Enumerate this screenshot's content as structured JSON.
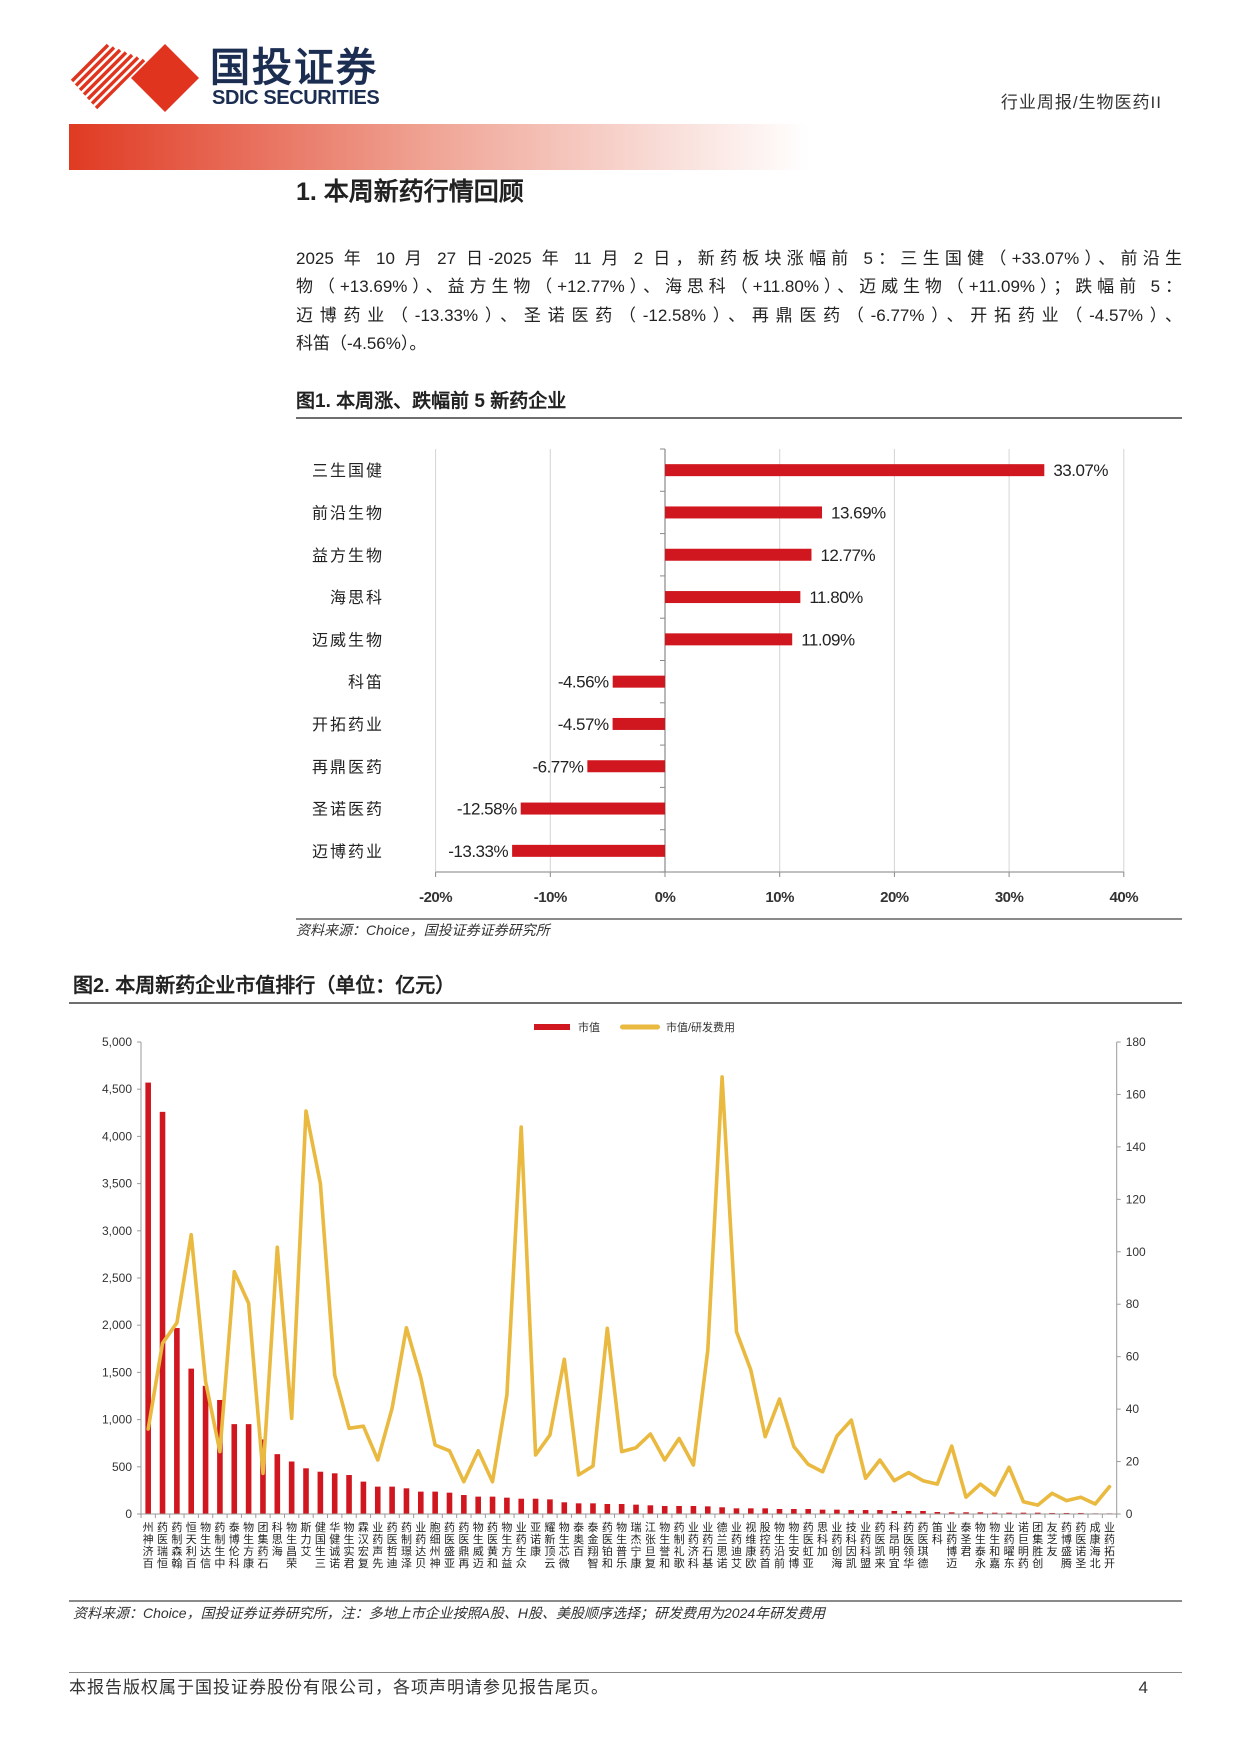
{
  "header": {
    "logo_cn": "国投证券",
    "logo_en": "SDIC SECURITIES",
    "report_type": "行业周报/生物医药II"
  },
  "section": {
    "title": "1. 本周新药行情回顾",
    "paragraph_lines": [
      "2025 年 10 月 27 日-2025 年 11 月 2 日，新药板块涨幅前 5：三生国健（+33.07%）、前沿生",
      "物（+13.69%）、益方生物（+12.77%）、海思科（+11.80%）、迈威生物（+11.09%）；跌幅前 5：",
      "迈博药业（-13.33%）、圣诺医药（-12.58%）、再鼎医药（-6.77%）、开拓药业（-4.57%）、",
      "科笛（-4.56%）。"
    ]
  },
  "figure1": {
    "title": "图1. 本周涨、跌幅前 5 新药企业",
    "source": "资料来源：Choice，国投证券证券研究所"
  },
  "figure2": {
    "title": "图2. 本周新药企业市值排行（单位：亿元）",
    "source": "资料来源：Choice，国投证券证券研究所，注：多地上市企业按照A股、H股、美股顺序选择；研发费用为2024年研发费用"
  },
  "footer": {
    "copyright": "本报告版权属于国投证券股份有限公司，各项声明请参见报告尾页。",
    "page_number": "4"
  },
  "colors": {
    "brand_red": "#e0341e",
    "brand_navy": "#1c2d52",
    "bar_red": "#d0171f",
    "line_yellow": "#e9b940"
  },
  "chart_data": [
    {
      "type": "bar",
      "orientation": "horizontal",
      "title": "图1. 本周涨、跌幅前 5 新药企业",
      "xlabel": "",
      "ylabel": "",
      "categories": [
        "三生国健",
        "前沿生物",
        "益方生物",
        "海思科",
        "迈威生物",
        "科笛",
        "开拓药业",
        "再鼎医药",
        "圣诺医药",
        "迈博药业"
      ],
      "values": [
        33.07,
        13.69,
        12.77,
        11.8,
        11.09,
        -4.56,
        -4.57,
        -6.77,
        -12.58,
        -13.33
      ],
      "value_labels": [
        "33.07%",
        "13.69%",
        "12.77%",
        "11.80%",
        "11.09%",
        "-4.56%",
        "-4.57%",
        "-6.77%",
        "-12.58%",
        "-13.33%"
      ],
      "xlim": [
        -20,
        40
      ],
      "xticks": [
        -20,
        -10,
        0,
        10,
        20,
        30,
        40
      ],
      "xtick_labels": [
        "-20%",
        "-10%",
        "0%",
        "10%",
        "20%",
        "30%",
        "40%"
      ],
      "grid": true,
      "legend": "none",
      "color": "#d0171f"
    },
    {
      "type": "bar+line",
      "title": "图2. 本周新药企业市值排行（单位：亿元）",
      "xlabel": "",
      "ylabel_left": "",
      "ylabel_right": "",
      "legend_position": "top",
      "categories": [
        "百济神州",
        "恒瑞医药",
        "翰森制药",
        "百利天恒",
        "信达生物",
        "中生制药",
        "科伦博泰",
        "康方生物",
        "石药集团",
        "海思科",
        "荣昌生物",
        "艾力斯",
        "三生国健",
        "诺诚健华",
        "君实生物",
        "复宏汉霖",
        "先声药业",
        "迪哲医药",
        "泽璟制药",
        "贝达药业",
        "神州细胞",
        "亚盛医药",
        "再鼎医药",
        "迈威生物",
        "和黄医药",
        "益方生物",
        "众生药业",
        "康诺亚",
        "云顶新耀",
        "微芯生物",
        "百奥泰",
        "智翔金泰",
        "和铂医药",
        "乐普生物",
        "康宁杰瑞",
        "复旦张江",
        "和誉生物",
        "歌礼制药",
        "科济药业",
        "基石药业",
        "诺思兰德",
        "艾迪药业",
        "欧康维视",
        "首药控股",
        "前沿生物",
        "博安生物",
        "亚虹医药",
        "加科思",
        "海创药业",
        "凯因科技",
        "盟科药业",
        "来凯医药",
        "宜明昂科",
        "华领医药",
        "德琪医药",
        "科笛",
        "迈博药业",
        "君圣泰",
        "永泰生物",
        "嘉和生物",
        "东曜药业",
        "药明巨诺",
        "创胜集团",
        "友芝友",
        "腾盛博药",
        "圣诺医药",
        "北海康成",
        "开拓药业"
      ],
      "series": [
        {
          "name": "市值",
          "type": "bar",
          "axis": "left",
          "color": "#d0171f",
          "values": [
            4570,
            4260,
            1970,
            1540,
            1358,
            1208,
            952,
            952,
            790,
            634,
            556,
            484,
            448,
            431,
            413,
            343,
            290,
            290,
            272,
            237,
            237,
            226,
            201,
            184,
            184,
            173,
            162,
            162,
            155,
            124,
            113,
            113,
            106,
            106,
            99,
            92,
            85,
            85,
            85,
            81,
            71,
            60,
            60,
            60,
            53,
            53,
            53,
            46,
            46,
            42,
            42,
            42,
            32,
            32,
            32,
            21,
            18,
            18,
            18,
            14,
            14,
            14,
            14,
            11,
            11,
            11,
            7,
            7
          ]
        },
        {
          "name": "市值/研发费用",
          "type": "line",
          "axis": "right",
          "color": "#e9b940",
          "values": [
            32.4,
            65.1,
            72.9,
            106.5,
            50.5,
            23.8,
            92.4,
            80.4,
            15.5,
            101.7,
            36.5,
            153.7,
            126.0,
            53.0,
            32.7,
            33.5,
            20.6,
            40.3,
            71.0,
            52.0,
            26.3,
            24.1,
            12.3,
            24.1,
            12.3,
            45.4,
            147.6,
            22.5,
            30.1,
            59.0,
            14.9,
            18.3,
            70.8,
            23.8,
            25.3,
            30.5,
            20.6,
            28.8,
            18.7,
            62.5,
            166.7,
            69.5,
            54.9,
            29.5,
            43.8,
            25.7,
            18.9,
            16.1,
            29.7,
            35.8,
            13.6,
            20.6,
            12.7,
            15.8,
            12.7,
            11.4,
            25.9,
            6.4,
            11.4,
            7.2,
            17.8,
            4.7,
            3.4,
            7.9,
            5.1,
            6.4,
            3.8,
            10.4
          ]
        }
      ],
      "ylim_left": [
        0,
        5000
      ],
      "yticks_left": [
        0,
        500,
        1000,
        1500,
        2000,
        2500,
        3000,
        3500,
        4000,
        4500,
        5000
      ],
      "ytick_labels_left": [
        "0",
        "500",
        "1,000",
        "1,500",
        "2,000",
        "2,500",
        "3,000",
        "3,500",
        "4,000",
        "4,500",
        "5,000"
      ],
      "ylim_right": [
        0,
        180
      ],
      "yticks_right": [
        0,
        20,
        40,
        60,
        80,
        100,
        120,
        140,
        160,
        180
      ],
      "ytick_labels_right": [
        "0",
        "20",
        "40",
        "60",
        "80",
        "100",
        "120",
        "140",
        "160",
        "180"
      ],
      "grid": false
    }
  ]
}
